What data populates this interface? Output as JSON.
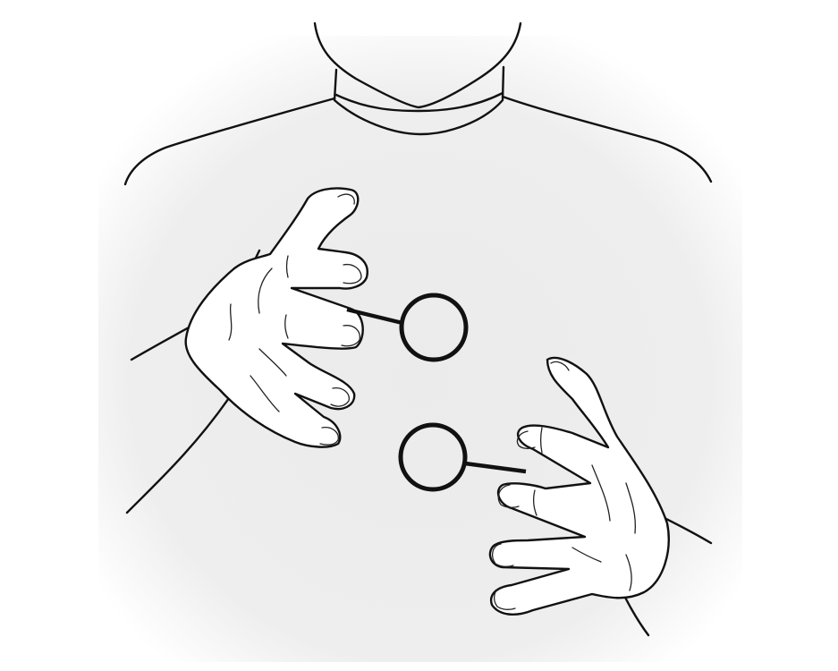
{
  "illustration": {
    "subject": "",
    "colors": {
      "background": "#ffffff",
      "shirt_shade": "#ececec",
      "ink": "#111111"
    },
    "markers": [
      {
        "id": "upper-hand-marker",
        "shape": "circle-with-leader-line"
      },
      {
        "id": "lower-hand-marker",
        "shape": "circle-with-leader-line"
      }
    ]
  }
}
